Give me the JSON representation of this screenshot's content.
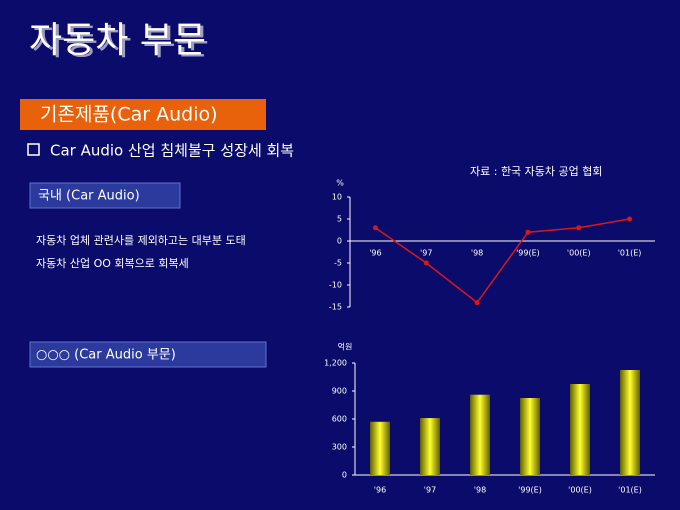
{
  "slide": {
    "title": "자동차 부문",
    "banner": "기존제품(Car Audio)",
    "bullet": "Car Audio 산업 침체불구 성장세 회복",
    "source": "자료 : 한국 자동차 공업 협회",
    "box1": "국내 (Car Audio)",
    "lines": [
      "자동차 업체 관련사를 제외하고는 대부분 도태",
      "자동차 산업 OO 회복으로 회복세"
    ],
    "box2": "○○○ (Car Audio 부문)"
  },
  "chart_data": [
    {
      "type": "line",
      "y_label": "%",
      "categories": [
        "'96",
        "'97",
        "'98",
        "'99(E)",
        "'00(E)",
        "'01(E)"
      ],
      "values": [
        3,
        -5,
        -14,
        2,
        3,
        5
      ],
      "color": "#d81818",
      "ylim": [
        -15,
        10
      ],
      "yticks": [
        10,
        5,
        0,
        -5,
        -10,
        -15
      ]
    },
    {
      "type": "bar",
      "y_label": "억원",
      "categories": [
        "'96",
        "'97",
        "'98",
        "'99(E)",
        "'00(E)",
        "'01(E)"
      ],
      "values": [
        570,
        610,
        860,
        825,
        975,
        1125
      ],
      "color": "#ffff30",
      "ylim": [
        0,
        1200
      ],
      "yticks": [
        0,
        300,
        600,
        900,
        {
          "value": 1200,
          "label": "1,200"
        }
      ]
    }
  ]
}
